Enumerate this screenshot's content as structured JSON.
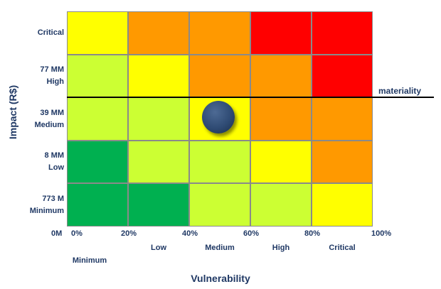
{
  "chart_data": {
    "type": "heatmap",
    "x_ticks": [
      "0%",
      "20%",
      "40%",
      "60%",
      "80%",
      "100%"
    ],
    "x_categories": [
      "Minimum",
      "Low",
      "Medium",
      "High",
      "Critical"
    ],
    "y_categories": [
      {
        "value": "Critical",
        "label": "Critical"
      },
      {
        "value": "77 MM",
        "label": "High"
      },
      {
        "value": "39 MM",
        "label": "Medium"
      },
      {
        "value": "8 MM",
        "label": "Low"
      },
      {
        "value": "773 M",
        "label": "Minimum"
      }
    ],
    "y_origin_label": "0M",
    "xlabel": "Vulnerability",
    "ylabel": "Impact (R$)",
    "matrix_rows_top_to_bottom": [
      [
        "#ffff00",
        "#ff9900",
        "#ff9900",
        "#ff0000",
        "#ff0000"
      ],
      [
        "#ccff33",
        "#ffff00",
        "#ff9900",
        "#ff9900",
        "#ff0000"
      ],
      [
        "#ccff33",
        "#ccff33",
        "#ffff00",
        "#ff9900",
        "#ff9900"
      ],
      [
        "#00b050",
        "#ccff33",
        "#ccff33",
        "#ffff00",
        "#ff9900"
      ],
      [
        "#00b050",
        "#00b050",
        "#ccff33",
        "#ccff33",
        "#ffff00"
      ]
    ],
    "materiality": {
      "label": "materiality",
      "boundary": "between High and Medium impact"
    },
    "point": {
      "vulnerability_pct": 50,
      "impact_level": "Medium",
      "color": "#2f4b74"
    }
  }
}
